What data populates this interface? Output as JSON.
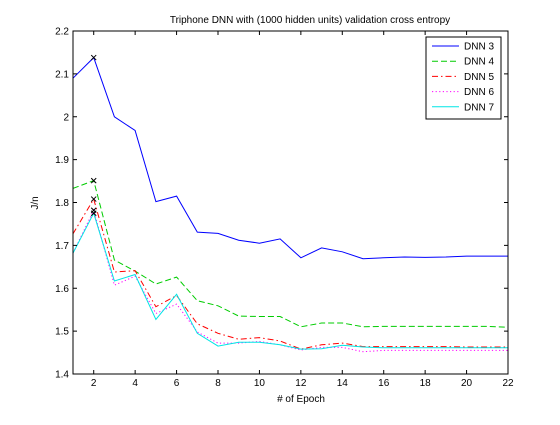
{
  "chart_data": {
    "type": "line",
    "title": "Triphone DNN with (1000 hidden units) validation cross entropy",
    "xlabel": "# of Epoch",
    "ylabel": "J/n",
    "xlim": [
      1,
      22
    ],
    "ylim": [
      1.4,
      2.2
    ],
    "xticks": [
      2,
      4,
      6,
      8,
      10,
      12,
      14,
      16,
      18,
      20,
      22
    ],
    "yticks": [
      1.4,
      1.5,
      1.6,
      1.7,
      1.8,
      1.9,
      2.0,
      2.1,
      2.2
    ],
    "xtick_labels": [
      "2",
      "4",
      "6",
      "8",
      "10",
      "12",
      "14",
      "16",
      "18",
      "20",
      "22"
    ],
    "ytick_labels": [
      "1.4",
      "1.5",
      "1.6",
      "1.7",
      "1.8",
      "1.9",
      "2",
      "2.1",
      "2.2"
    ],
    "grid": false,
    "legend_position": "top-right",
    "x": [
      1,
      2,
      3,
      4,
      5,
      6,
      7,
      8,
      9,
      10,
      11,
      12,
      13,
      14,
      15,
      16,
      17,
      18,
      19,
      20,
      21,
      22
    ],
    "series": [
      {
        "name": "DNN 3",
        "color": "#0000ff",
        "dash": "solid",
        "marker_x": 2,
        "values": [
          2.09,
          2.138,
          2.0,
          1.968,
          1.802,
          1.815,
          1.731,
          1.728,
          1.712,
          1.705,
          1.715,
          1.671,
          1.694,
          1.685,
          1.669,
          1.671,
          1.673,
          1.672,
          1.673,
          1.675,
          1.675,
          1.675
        ]
      },
      {
        "name": "DNN 4",
        "color": "#00cc00",
        "dash": "dashed",
        "marker_x": 2,
        "values": [
          1.833,
          1.851,
          1.666,
          1.64,
          1.61,
          1.626,
          1.571,
          1.559,
          1.535,
          1.534,
          1.534,
          1.51,
          1.519,
          1.519,
          1.51,
          1.511,
          1.511,
          1.511,
          1.511,
          1.511,
          1.511,
          1.509
        ]
      },
      {
        "name": "DNN 5",
        "color": "#ff0000",
        "dash": "dashdot",
        "marker_x": 2,
        "values": [
          1.727,
          1.808,
          1.638,
          1.641,
          1.557,
          1.583,
          1.517,
          1.495,
          1.481,
          1.485,
          1.477,
          1.458,
          1.468,
          1.472,
          1.464,
          1.464,
          1.464,
          1.464,
          1.464,
          1.463,
          1.463,
          1.463
        ]
      },
      {
        "name": "DNN 6",
        "color": "#ff00ff",
        "dash": "dotted",
        "marker_x": 2,
        "values": [
          1.682,
          1.782,
          1.607,
          1.628,
          1.541,
          1.563,
          1.498,
          1.472,
          1.472,
          1.476,
          1.468,
          1.456,
          1.462,
          1.462,
          1.452,
          1.455,
          1.455,
          1.455,
          1.455,
          1.455,
          1.455,
          1.455
        ]
      },
      {
        "name": "DNN 7",
        "color": "#00e5e5",
        "dash": "solid",
        "marker_x": 2,
        "values": [
          1.682,
          1.775,
          1.617,
          1.632,
          1.527,
          1.586,
          1.495,
          1.465,
          1.474,
          1.474,
          1.468,
          1.458,
          1.459,
          1.467,
          1.463,
          1.461,
          1.461,
          1.461,
          1.461,
          1.461,
          1.461,
          1.461
        ]
      }
    ]
  }
}
